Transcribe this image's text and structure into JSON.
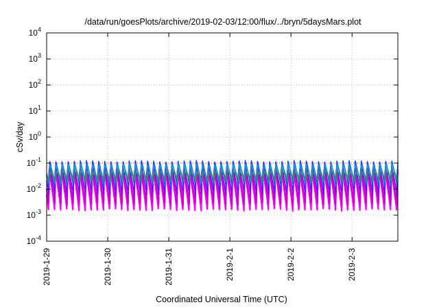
{
  "chart_data": {
    "type": "line",
    "title": "/data/run/goesPlots/archive/2019-02-03/12:00/flux/../bryn/5daysMars.plot",
    "xlabel": "Coordinated Universal Time (UTC)",
    "ylabel": "cSv/day",
    "yscale": "log",
    "ylim": [
      0.0001,
      10000
    ],
    "xlim": [
      0,
      5.75
    ],
    "y_ticks": [
      {
        "base": "10",
        "exp": "-4"
      },
      {
        "base": "10",
        "exp": "-3"
      },
      {
        "base": "10",
        "exp": "-2"
      },
      {
        "base": "10",
        "exp": "-1"
      },
      {
        "base": "10",
        "exp": "0"
      },
      {
        "base": "10",
        "exp": "1"
      },
      {
        "base": "10",
        "exp": "2"
      },
      {
        "base": "10",
        "exp": "3"
      },
      {
        "base": "10",
        "exp": "4"
      }
    ],
    "x_ticks": [
      {
        "pos": 0,
        "label": "2019-1-29"
      },
      {
        "pos": 1,
        "label": "2019-1-30"
      },
      {
        "pos": 2,
        "label": "2019-1-31"
      },
      {
        "pos": 3,
        "label": "2019-2-1"
      },
      {
        "pos": 4,
        "label": "2019-2-2"
      },
      {
        "pos": 5,
        "label": "2019-2-3"
      }
    ],
    "grid": true,
    "reference_line": {
      "y": 0.1,
      "color": "#ff3333",
      "style": "dotted"
    },
    "cycles_per_day": 10,
    "series": [
      {
        "color": "#ff00ff",
        "peak": 0.05,
        "trough": 0.0015
      },
      {
        "color": "#cc00cc",
        "peak": 0.06,
        "trough": 0.0025
      },
      {
        "color": "#7f00ff",
        "peak": 0.08,
        "trough": 0.006
      },
      {
        "color": "#1f3fff",
        "peak": 0.12,
        "trough": 0.012
      },
      {
        "color": "#00a0c8",
        "peak": 0.09,
        "trough": 0.018
      },
      {
        "color": "#2f8f6f",
        "peak": 0.05,
        "trough": 0.02
      }
    ]
  }
}
